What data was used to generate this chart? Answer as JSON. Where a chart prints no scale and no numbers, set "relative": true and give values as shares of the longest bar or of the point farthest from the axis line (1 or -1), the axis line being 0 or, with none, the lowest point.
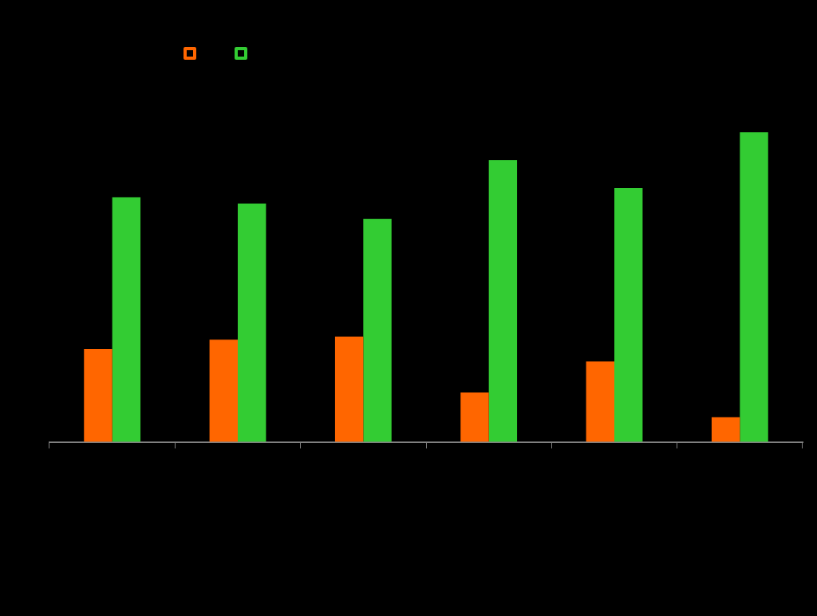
{
  "chart_data": {
    "type": "bar",
    "relative": true,
    "categories": [
      null,
      null,
      null,
      null,
      null,
      null
    ],
    "series": [
      {
        "color": "#ff6600",
        "values": [
          0.3,
          0.33,
          0.34,
          0.16,
          0.26,
          0.08
        ]
      },
      {
        "color": "#33cc33",
        "values": [
          0.79,
          0.77,
          0.72,
          0.91,
          0.82,
          1
        ]
      }
    ],
    "grid": false
  }
}
